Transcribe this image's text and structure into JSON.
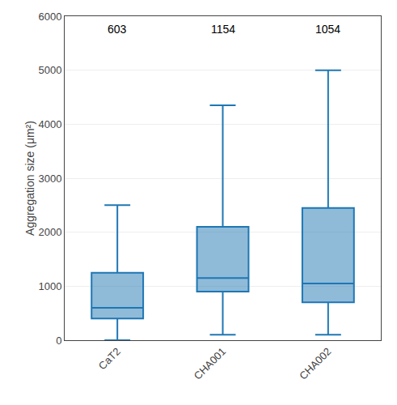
{
  "chart_data": {
    "type": "box",
    "categories": [
      "CaT2",
      "CHA001",
      "CHA002"
    ],
    "box_stats": [
      {
        "whislo": 0,
        "q1": 400,
        "med": 600,
        "q3": 1250,
        "whishi": 2500
      },
      {
        "whislo": 100,
        "q1": 900,
        "med": 1150,
        "q3": 2100,
        "whishi": 4350
      },
      {
        "whislo": 100,
        "q1": 700,
        "med": 1050,
        "q3": 2450,
        "whishi": 5000
      }
    ],
    "means": [
      603,
      1154,
      1054
    ],
    "ylabel": "Aggregation size (μm²)",
    "ylim": [
      0,
      6000
    ],
    "yticks": [
      0,
      1000,
      2000,
      3000,
      4000,
      5000,
      6000
    ],
    "grid": true
  }
}
